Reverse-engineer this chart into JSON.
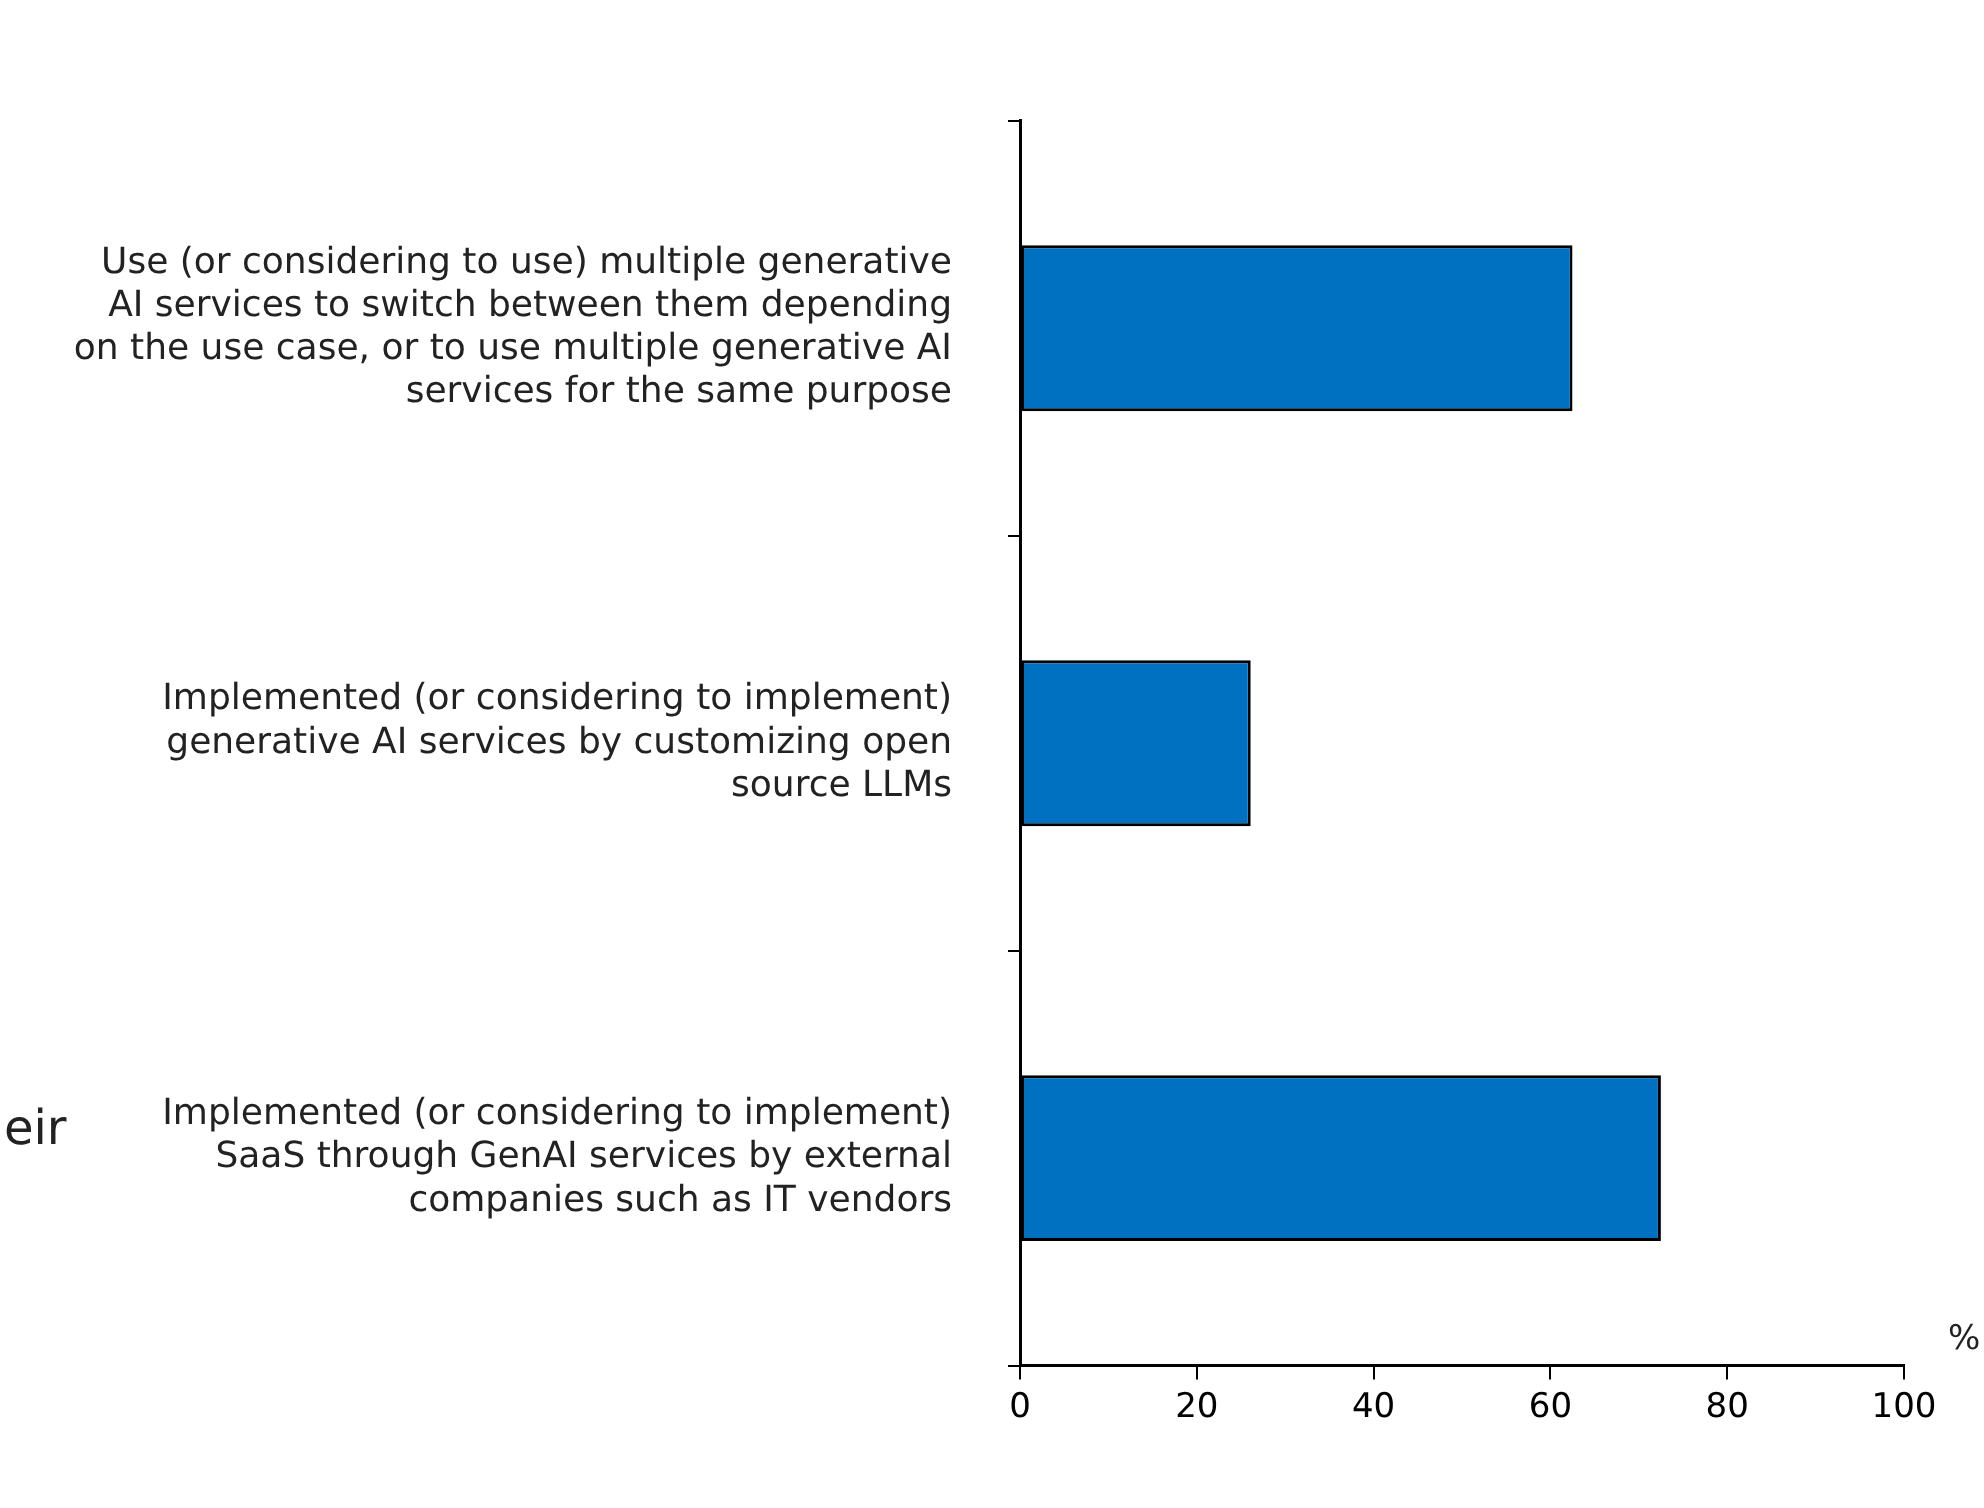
{
  "chart_data": {
    "type": "bar",
    "orientation": "horizontal",
    "categories": [
      "Use (or considering to use) multiple generative AI services to switch between them depending on the use case, or to use multiple generative AI services for the same purpose",
      "Implemented (or considering to implement) generative AI services by customizing open source LLMs",
      "Implemented (or considering to implement) SaaS through GenAI services by external companies such as IT vendors"
    ],
    "values": [
      62.5,
      26.1,
      72.5
    ],
    "color": "#0070c0",
    "xlabel": "%",
    "xlim": [
      0,
      100
    ],
    "xticks": [
      0,
      20,
      40,
      60,
      80,
      100
    ],
    "grid": false,
    "legend": false,
    "annotations": [
      "eir"
    ]
  }
}
